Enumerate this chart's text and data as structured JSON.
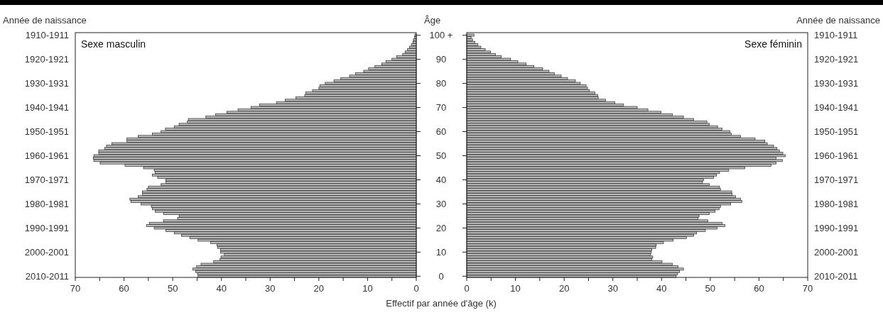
{
  "chart_data": [
    {
      "type": "bar",
      "orientation": "horizontal",
      "title": "Sexe masculin",
      "ylabel": "Année de naissance",
      "color": "#bdbdbd",
      "xlim": [
        70,
        0
      ],
      "xticks": [
        70,
        {
          "value": 65,
          "label": null
        },
        60,
        {
          "value": 55,
          "label": null
        },
        50,
        {
          "value": 45,
          "label": null
        },
        40,
        {
          "value": 35,
          "label": null
        },
        30,
        {
          "value": 25,
          "label": null
        },
        20,
        {
          "value": 15,
          "label": null
        },
        10,
        {
          "value": 5,
          "label": null
        },
        0
      ],
      "categories": [
        "1910-1911",
        null,
        null,
        null,
        null,
        null,
        null,
        null,
        null,
        null,
        "1920-1921",
        null,
        null,
        null,
        null,
        null,
        null,
        null,
        null,
        null,
        "1930-1931",
        null,
        null,
        null,
        null,
        null,
        null,
        null,
        null,
        null,
        "1940-1941",
        null,
        null,
        null,
        null,
        null,
        null,
        null,
        null,
        null,
        "1950-1951",
        null,
        null,
        null,
        null,
        null,
        null,
        null,
        null,
        null,
        "1960-1961",
        null,
        null,
        null,
        null,
        null,
        null,
        null,
        null,
        null,
        "1970-1971",
        null,
        null,
        null,
        null,
        null,
        null,
        null,
        null,
        null,
        "1980-1981",
        null,
        null,
        null,
        null,
        null,
        null,
        null,
        null,
        null,
        "1990-1991",
        null,
        null,
        null,
        null,
        null,
        null,
        null,
        null,
        null,
        "2000-2001",
        null,
        null,
        null,
        null,
        null,
        null,
        null,
        null,
        null,
        "2010-2011"
      ],
      "values": [
        0.3,
        0.4,
        0.6,
        0.7,
        1.0,
        1.4,
        1.8,
        2.3,
        2.8,
        4.0,
        5.0,
        6.2,
        7.1,
        8.5,
        9.8,
        10.8,
        12.5,
        13.7,
        15.5,
        16.9,
        18.7,
        19.8,
        20.0,
        21.3,
        22.7,
        22.9,
        24.7,
        26.9,
        28.7,
        32.2,
        33.9,
        36.6,
        38.9,
        41.2,
        43.2,
        46.8,
        47.0,
        48.7,
        49.7,
        51.5,
        52.4,
        54.2,
        57.1,
        59.4,
        59.4,
        62.5,
        63.6,
        64.0,
        65.2,
        65.2,
        66.2,
        66.3,
        66.2,
        64.9,
        59.8,
        56.0,
        53.8,
        53.6,
        54.2,
        53.1,
        51.4,
        51.4,
        52.4,
        55.0,
        55.3,
        56.2,
        56.2,
        57.1,
        58.8,
        58.6,
        56.5,
        54.4,
        54.2,
        53.6,
        51.9,
        48.7,
        49.0,
        51.9,
        54.8,
        55.4,
        53.8,
        51.4,
        49.7,
        48.2,
        46.5,
        44.8,
        42.2,
        40.9,
        40.8,
        40.2,
        40.2,
        39.4,
        40.1,
        40.3,
        41.6,
        44.2,
        45.1,
        45.9,
        45.3,
        44.9,
        44.8
      ]
    },
    {
      "type": "bar",
      "orientation": "horizontal",
      "title": "Sexe féminin",
      "ylabel": "Âge",
      "y2label": "Année de naissance",
      "xlabel": "Effectif par année d'âge (k)",
      "color": "#bdbdbd",
      "xlim": [
        0,
        70
      ],
      "xticks": [
        0,
        {
          "value": 5,
          "label": null
        },
        10,
        {
          "value": 15,
          "label": null
        },
        20,
        {
          "value": 25,
          "label": null
        },
        30,
        {
          "value": 35,
          "label": null
        },
        40,
        {
          "value": 45,
          "label": null
        },
        50,
        {
          "value": 55,
          "label": null
        },
        60,
        {
          "value": 65,
          "label": null
        },
        70
      ],
      "categories": [
        "100 +",
        null,
        null,
        null,
        null,
        null,
        null,
        null,
        null,
        null,
        "90",
        null,
        null,
        null,
        null,
        null,
        null,
        null,
        null,
        null,
        "80",
        null,
        null,
        null,
        null,
        null,
        null,
        null,
        null,
        null,
        "70",
        null,
        null,
        null,
        null,
        null,
        null,
        null,
        null,
        null,
        "60",
        null,
        null,
        null,
        null,
        null,
        null,
        null,
        null,
        null,
        "50",
        null,
        null,
        null,
        null,
        null,
        null,
        null,
        null,
        null,
        "40",
        null,
        null,
        null,
        null,
        null,
        null,
        null,
        null,
        null,
        "30",
        null,
        null,
        null,
        null,
        null,
        null,
        null,
        null,
        null,
        "20",
        null,
        null,
        null,
        null,
        null,
        null,
        null,
        null,
        null,
        "10",
        null,
        null,
        null,
        null,
        null,
        null,
        null,
        null,
        null,
        "0"
      ],
      "y2_categories": [
        "1910-1911",
        null,
        null,
        null,
        null,
        null,
        null,
        null,
        null,
        null,
        "1920-1921",
        null,
        null,
        null,
        null,
        null,
        null,
        null,
        null,
        null,
        "1930-1931",
        null,
        null,
        null,
        null,
        null,
        null,
        null,
        null,
        null,
        "1940-1941",
        null,
        null,
        null,
        null,
        null,
        null,
        null,
        null,
        null,
        "1950-1951",
        null,
        null,
        null,
        null,
        null,
        null,
        null,
        null,
        null,
        "1960-1961",
        null,
        null,
        null,
        null,
        null,
        null,
        null,
        null,
        null,
        "1970-1971",
        null,
        null,
        null,
        null,
        null,
        null,
        null,
        null,
        null,
        "1980-1981",
        null,
        null,
        null,
        null,
        null,
        null,
        null,
        null,
        null,
        "1990-1991",
        null,
        null,
        null,
        null,
        null,
        null,
        null,
        null,
        null,
        "2000-2001",
        null,
        null,
        null,
        null,
        null,
        null,
        null,
        null,
        null,
        "2010-2011"
      ],
      "values": [
        1.5,
        0.9,
        1.2,
        1.7,
        2.3,
        2.9,
        3.8,
        4.9,
        5.9,
        7.1,
        9.0,
        10.5,
        12.2,
        13.8,
        15.6,
        16.9,
        18.0,
        19.4,
        20.7,
        22.3,
        23.3,
        24.5,
        24.8,
        25.2,
        26.3,
        26.9,
        27.0,
        28.5,
        30.4,
        32.2,
        35.0,
        37.2,
        39.9,
        42.2,
        44.5,
        46.6,
        49.3,
        49.8,
        51.5,
        52.4,
        54.0,
        54.3,
        56.2,
        59.2,
        61.2,
        61.7,
        63.0,
        63.7,
        64.2,
        64.9,
        65.4,
        63.5,
        64.8,
        63.5,
        62.5,
        57.1,
        53.8,
        51.9,
        51.3,
        50.7,
        48.6,
        48.4,
        49.8,
        51.9,
        52.1,
        54.4,
        54.5,
        55.2,
        56.2,
        56.5,
        54.2,
        52.1,
        51.8,
        51.0,
        49.8,
        47.7,
        47.5,
        49.5,
        52.4,
        53.0,
        51.4,
        49.0,
        47.2,
        46.6,
        45.1,
        42.4,
        40.4,
        38.9,
        38.8,
        38.0,
        37.9,
        37.7,
        38.2,
        38.0,
        40.1,
        42.2,
        43.4,
        44.5,
        43.7,
        43.3,
        43.0
      ]
    }
  ]
}
